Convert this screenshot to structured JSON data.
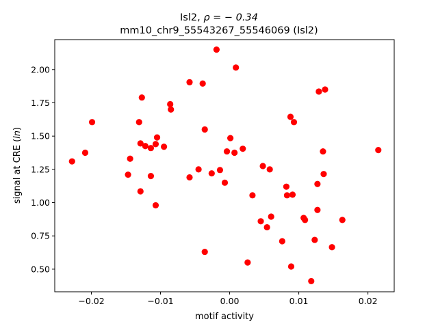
{
  "chart_data": {
    "type": "scatter",
    "title_line1": "Isl2, ",
    "title_rho": "ρ = − 0.34",
    "title_line2": "mm10_chr9_55543267_55546069 (Isl2)",
    "xlabel": "motif activity",
    "ylabel_prefix": "signal at CRE (",
    "ylabel_italic": "ln",
    "ylabel_suffix": ")",
    "xlim": [
      -0.0253,
      0.0238
    ],
    "ylim": [
      0.33,
      2.225
    ],
    "xticks": [
      {
        "v": -0.02,
        "label": "−0.02"
      },
      {
        "v": -0.01,
        "label": "−0.01"
      },
      {
        "v": 0.0,
        "label": "0.00"
      },
      {
        "v": 0.01,
        "label": "0.01"
      },
      {
        "v": 0.02,
        "label": "0.02"
      }
    ],
    "yticks": [
      {
        "v": 0.5,
        "label": "0.50"
      },
      {
        "v": 0.75,
        "label": "0.75"
      },
      {
        "v": 1.0,
        "label": "1.00"
      },
      {
        "v": 1.25,
        "label": "1.25"
      },
      {
        "v": 1.5,
        "label": "1.50"
      },
      {
        "v": 1.75,
        "label": "1.75"
      },
      {
        "v": 2.0,
        "label": "2.00"
      }
    ],
    "grid": false,
    "marker_color": "#ff0000",
    "points": [
      {
        "x": -0.0228,
        "y": 1.31
      },
      {
        "x": -0.0209,
        "y": 1.375
      },
      {
        "x": -0.0199,
        "y": 1.605
      },
      {
        "x": -0.0147,
        "y": 1.21
      },
      {
        "x": -0.0144,
        "y": 1.33
      },
      {
        "x": -0.0131,
        "y": 1.605
      },
      {
        "x": -0.0129,
        "y": 1.445
      },
      {
        "x": -0.0129,
        "y": 1.085
      },
      {
        "x": -0.0127,
        "y": 1.79
      },
      {
        "x": -0.0122,
        "y": 1.425
      },
      {
        "x": -0.0114,
        "y": 1.41
      },
      {
        "x": -0.0114,
        "y": 1.2
      },
      {
        "x": -0.0107,
        "y": 1.44
      },
      {
        "x": -0.0107,
        "y": 0.98
      },
      {
        "x": -0.0105,
        "y": 1.49
      },
      {
        "x": -0.0095,
        "y": 1.42
      },
      {
        "x": -0.0086,
        "y": 1.74
      },
      {
        "x": -0.0085,
        "y": 1.7
      },
      {
        "x": -0.0058,
        "y": 1.905
      },
      {
        "x": -0.0058,
        "y": 1.19
      },
      {
        "x": -0.0045,
        "y": 1.25
      },
      {
        "x": -0.0039,
        "y": 1.895
      },
      {
        "x": -0.0036,
        "y": 1.55
      },
      {
        "x": -0.0036,
        "y": 0.63
      },
      {
        "x": -0.0026,
        "y": 1.22
      },
      {
        "x": -0.0019,
        "y": 2.15
      },
      {
        "x": -0.0014,
        "y": 1.245
      },
      {
        "x": -0.0007,
        "y": 1.15
      },
      {
        "x": -0.0004,
        "y": 1.385
      },
      {
        "x": 0.0001,
        "y": 1.485
      },
      {
        "x": 0.0007,
        "y": 1.375
      },
      {
        "x": 0.0009,
        "y": 2.015
      },
      {
        "x": 0.0019,
        "y": 1.405
      },
      {
        "x": 0.0026,
        "y": 0.55
      },
      {
        "x": 0.0033,
        "y": 1.055
      },
      {
        "x": 0.0045,
        "y": 0.86
      },
      {
        "x": 0.0048,
        "y": 1.275
      },
      {
        "x": 0.0054,
        "y": 0.815
      },
      {
        "x": 0.0058,
        "y": 1.25
      },
      {
        "x": 0.006,
        "y": 0.895
      },
      {
        "x": 0.0076,
        "y": 0.71
      },
      {
        "x": 0.0082,
        "y": 1.12
      },
      {
        "x": 0.0083,
        "y": 1.055
      },
      {
        "x": 0.0088,
        "y": 1.645
      },
      {
        "x": 0.0089,
        "y": 0.52
      },
      {
        "x": 0.0091,
        "y": 1.06
      },
      {
        "x": 0.0093,
        "y": 1.605
      },
      {
        "x": 0.0107,
        "y": 0.885
      },
      {
        "x": 0.0109,
        "y": 0.87
      },
      {
        "x": 0.0118,
        "y": 0.41
      },
      {
        "x": 0.0123,
        "y": 0.72
      },
      {
        "x": 0.0127,
        "y": 1.14
      },
      {
        "x": 0.0127,
        "y": 0.945
      },
      {
        "x": 0.0129,
        "y": 1.835
      },
      {
        "x": 0.0135,
        "y": 1.385
      },
      {
        "x": 0.0136,
        "y": 1.215
      },
      {
        "x": 0.0138,
        "y": 1.85
      },
      {
        "x": 0.0148,
        "y": 0.665
      },
      {
        "x": 0.0163,
        "y": 0.87
      },
      {
        "x": 0.0215,
        "y": 1.395
      }
    ]
  }
}
